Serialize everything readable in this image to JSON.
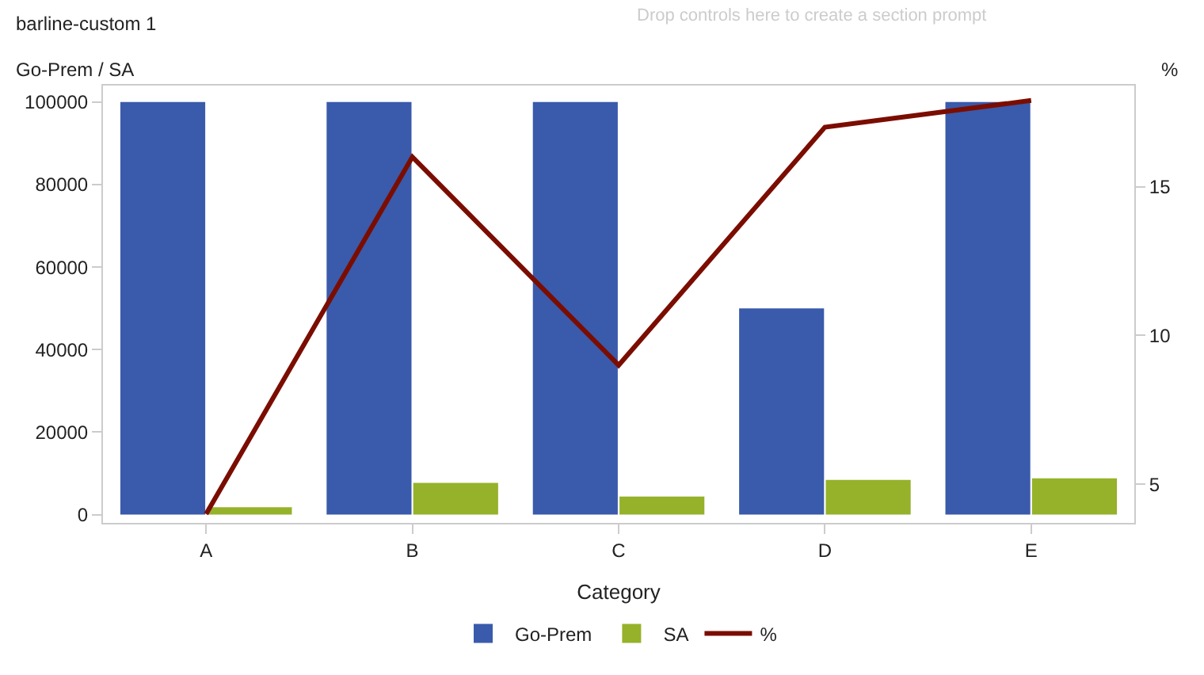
{
  "chart_data": {
    "type": "bar",
    "title": "barline-custom 1",
    "subtitle": "Drop controls here to create a section prompt",
    "xlabel": "Category",
    "ylabel": "Go-Prem / SA",
    "y2label": "%",
    "categories": [
      "A",
      "B",
      "C",
      "D",
      "E"
    ],
    "series": [
      {
        "name": "Go-Prem",
        "color": "#3a5aab",
        "values": [
          100000,
          100000,
          100000,
          50000,
          100000
        ]
      },
      {
        "name": "SA",
        "color": "#95b22a",
        "values": [
          1800,
          7700,
          4400,
          8400,
          8800
        ]
      },
      {
        "name": "%",
        "type": "line",
        "axis": "y2",
        "color": "#7b0d00",
        "values": [
          4.0,
          16.0,
          9.0,
          17.0,
          17.9
        ]
      }
    ],
    "ylim": [
      -2000,
      104000
    ],
    "yticks": [
      0,
      20000,
      40000,
      60000,
      80000,
      100000
    ],
    "y2lim": [
      3.7,
      18.4
    ],
    "y2ticks": [
      5,
      10,
      15
    ],
    "legend": "bottom",
    "marker": "none",
    "line_style": "solid"
  }
}
